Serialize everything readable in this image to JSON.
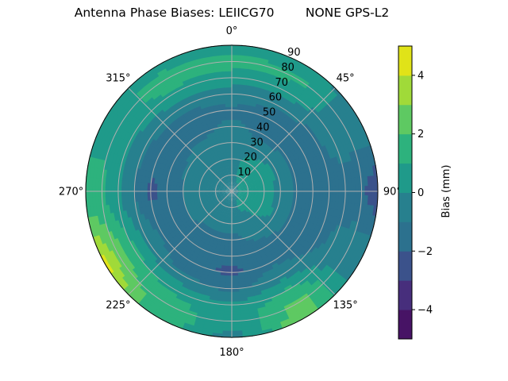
{
  "chart_data": {
    "type": "contour",
    "projection": "polar",
    "title": "Antenna Phase Biases: LEIICG70        NONE GPS-L2",
    "theta_zero": "top",
    "theta_direction": "clockwise",
    "theta_ticks": [
      0,
      45,
      90,
      135,
      180,
      225,
      270,
      315
    ],
    "theta_tick_labels": [
      "0°",
      "45°",
      "90°",
      "135°",
      "180°",
      "225°",
      "270°",
      "315°"
    ],
    "r_ticks": [
      10,
      20,
      30,
      40,
      50,
      60,
      70,
      80,
      90
    ],
    "r_tick_labels": [
      "10",
      "20",
      "30",
      "40",
      "50",
      "60",
      "70",
      "80",
      "90"
    ],
    "rlim": [
      0,
      90
    ],
    "grid": true,
    "colormap": "viridis",
    "levels": [
      -5,
      -4,
      -3,
      -2,
      -1,
      0,
      1,
      2,
      3,
      4,
      5
    ],
    "band_colors": [
      "#471365",
      "#472e7c",
      "#3b528b",
      "#2c718e",
      "#27808e",
      "#1f9a8a",
      "#2db27d",
      "#5ec962",
      "#a0da39",
      "#e0e318"
    ],
    "colorbar": {
      "label": "Bias (mm)",
      "ticks": [
        -4,
        -2,
        0,
        2,
        4
      ],
      "tick_labels": [
        "−4",
        "−2",
        "0",
        "2",
        "4"
      ],
      "range": [
        -5,
        5
      ]
    },
    "grid_azimuth_deg": [
      0,
      30,
      60,
      90,
      120,
      150,
      180,
      210,
      240,
      270,
      300,
      330
    ],
    "grid_zenith_deg": [
      0,
      10,
      20,
      30,
      40,
      50,
      60,
      70,
      80,
      90
    ],
    "values_mm": [
      [
        -0.3,
        -0.3,
        -0.5,
        -0.6,
        -0.8,
        -1.2,
        -0.5,
        0.5,
        1.5,
        0.3
      ],
      [
        -0.3,
        0.2,
        0.3,
        -0.5,
        -1.3,
        -1.5,
        -0.8,
        0.5,
        1.2,
        0.2
      ],
      [
        -0.3,
        0.5,
        0.6,
        -0.2,
        -1.3,
        -1.5,
        -1.2,
        -0.5,
        -0.5,
        -0.3
      ],
      [
        -0.3,
        0.6,
        0.6,
        -0.3,
        -1.2,
        -1.5,
        -1.5,
        -1.3,
        -1.8,
        -2.5
      ],
      [
        -0.3,
        0.5,
        0.5,
        -0.2,
        -1.2,
        -1.5,
        -1.2,
        -0.8,
        -0.3,
        -0.5
      ],
      [
        -0.3,
        0.2,
        -0.3,
        -0.8,
        -1.3,
        -1.2,
        -0.5,
        1.2,
        2.3,
        2.5
      ],
      [
        -0.3,
        -0.5,
        -0.7,
        -1.2,
        -1.8,
        -2.2,
        -1.2,
        0.3,
        0.5,
        -0.3
      ],
      [
        -0.3,
        -0.5,
        -0.8,
        -1.2,
        -1.6,
        -1.8,
        -0.8,
        0.8,
        1.5,
        1.5
      ],
      [
        -0.3,
        -0.5,
        -0.7,
        -1.0,
        -1.5,
        -1.2,
        -0.3,
        1.2,
        2.6,
        4.3
      ],
      [
        -0.3,
        -0.4,
        -0.6,
        -1.0,
        -1.8,
        -2.2,
        -1.0,
        0.2,
        1.2,
        1.5
      ],
      [
        -0.3,
        -0.3,
        -0.5,
        -0.8,
        -1.5,
        -1.5,
        -0.8,
        0.3,
        0.6,
        0.5
      ],
      [
        -0.3,
        -0.3,
        -0.4,
        -0.6,
        -1.2,
        -1.5,
        -0.6,
        0.8,
        1.6,
        0.4
      ]
    ]
  }
}
